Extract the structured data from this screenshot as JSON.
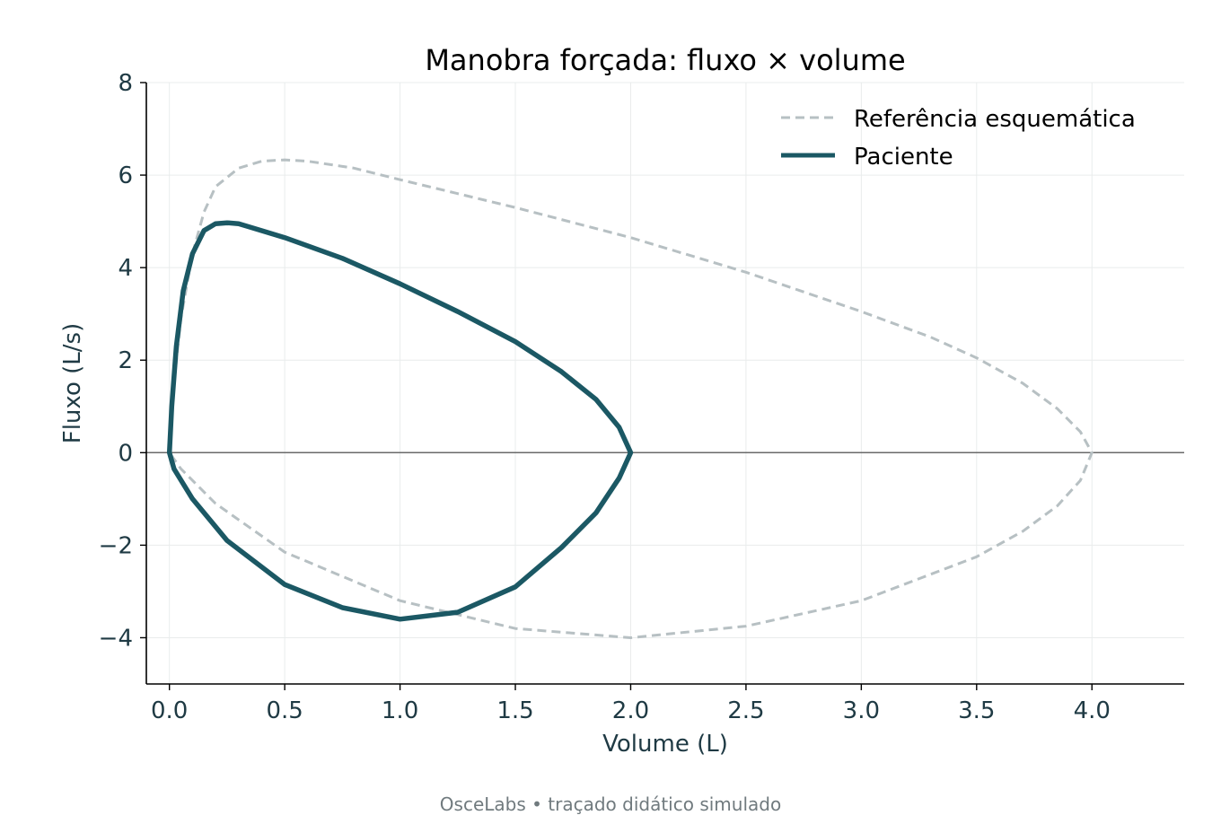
{
  "chart_data": {
    "type": "line",
    "title": "Manobra forçada: fluxo × volume",
    "xlabel": "Volume (L)",
    "ylabel": "Fluxo (L/s)",
    "xlim": [
      -0.1,
      4.4
    ],
    "ylim": [
      -5,
      8
    ],
    "xticks": [
      0.0,
      0.5,
      1.0,
      1.5,
      2.0,
      2.5,
      3.0,
      3.5,
      4.0
    ],
    "xtick_labels": [
      "0.0",
      "0.5",
      "1.0",
      "1.5",
      "2.0",
      "2.5",
      "3.0",
      "3.5",
      "4.0"
    ],
    "yticks": [
      -4,
      -2,
      0,
      2,
      4,
      6,
      8
    ],
    "ytick_labels": [
      "−4",
      "−2",
      "0",
      "2",
      "4",
      "6",
      "8"
    ],
    "grid": true,
    "legend_position": "top-right",
    "series": [
      {
        "name": "Referência esquemática",
        "style": "dashed",
        "color": "#b7c0c3",
        "points": [
          [
            0.0,
            0.0
          ],
          [
            0.02,
            1.5
          ],
          [
            0.05,
            2.9
          ],
          [
            0.1,
            4.3
          ],
          [
            0.15,
            5.2
          ],
          [
            0.2,
            5.75
          ],
          [
            0.3,
            6.15
          ],
          [
            0.4,
            6.3
          ],
          [
            0.5,
            6.33
          ],
          [
            0.6,
            6.3
          ],
          [
            0.8,
            6.15
          ],
          [
            1.0,
            5.9
          ],
          [
            1.5,
            5.3
          ],
          [
            2.0,
            4.65
          ],
          [
            2.5,
            3.9
          ],
          [
            3.0,
            3.05
          ],
          [
            3.3,
            2.5
          ],
          [
            3.5,
            2.05
          ],
          [
            3.7,
            1.5
          ],
          [
            3.85,
            0.95
          ],
          [
            3.95,
            0.45
          ],
          [
            4.0,
            0.0
          ],
          [
            3.95,
            -0.6
          ],
          [
            3.85,
            -1.15
          ],
          [
            3.7,
            -1.7
          ],
          [
            3.5,
            -2.25
          ],
          [
            3.0,
            -3.2
          ],
          [
            2.5,
            -3.75
          ],
          [
            2.0,
            -4.0
          ],
          [
            1.5,
            -3.8
          ],
          [
            1.0,
            -3.2
          ],
          [
            0.5,
            -2.15
          ],
          [
            0.2,
            -1.1
          ],
          [
            0.05,
            -0.35
          ],
          [
            0.0,
            0.0
          ]
        ]
      },
      {
        "name": "Paciente",
        "style": "solid",
        "color": "#1b5864",
        "points": [
          [
            0.0,
            0.0
          ],
          [
            0.01,
            1.0
          ],
          [
            0.03,
            2.3
          ],
          [
            0.06,
            3.5
          ],
          [
            0.1,
            4.3
          ],
          [
            0.15,
            4.8
          ],
          [
            0.2,
            4.95
          ],
          [
            0.25,
            4.97
          ],
          [
            0.3,
            4.95
          ],
          [
            0.5,
            4.65
          ],
          [
            0.75,
            4.2
          ],
          [
            1.0,
            3.65
          ],
          [
            1.25,
            3.05
          ],
          [
            1.5,
            2.4
          ],
          [
            1.7,
            1.75
          ],
          [
            1.85,
            1.15
          ],
          [
            1.95,
            0.55
          ],
          [
            2.0,
            0.0
          ],
          [
            1.95,
            -0.55
          ],
          [
            1.85,
            -1.3
          ],
          [
            1.7,
            -2.05
          ],
          [
            1.5,
            -2.9
          ],
          [
            1.25,
            -3.45
          ],
          [
            1.0,
            -3.6
          ],
          [
            0.75,
            -3.35
          ],
          [
            0.5,
            -2.85
          ],
          [
            0.25,
            -1.9
          ],
          [
            0.1,
            -1.0
          ],
          [
            0.02,
            -0.35
          ],
          [
            0.0,
            0.0
          ]
        ]
      }
    ]
  },
  "footer": "OsceLabs • traçado didático simulado"
}
